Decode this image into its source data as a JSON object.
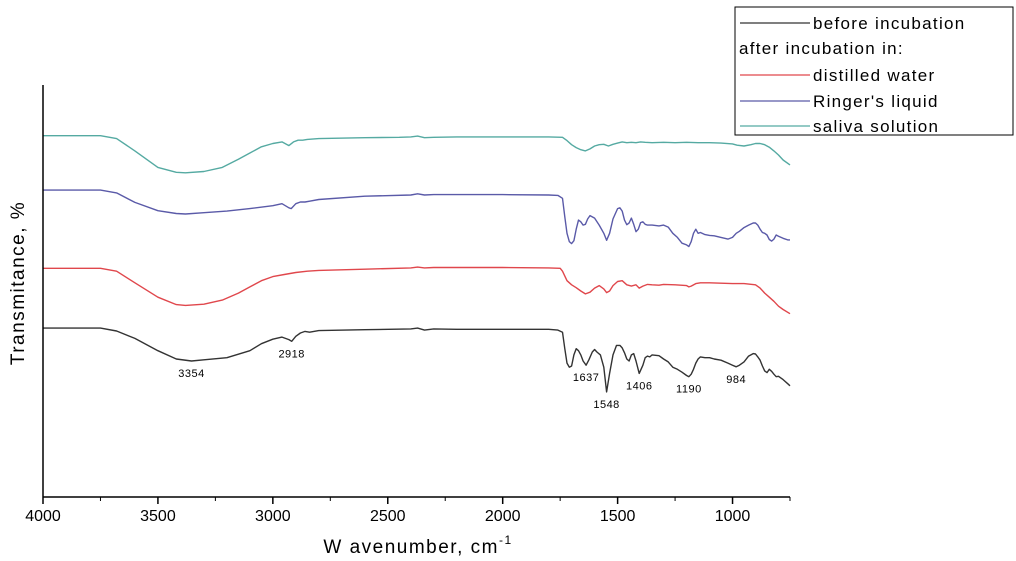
{
  "chart_data": {
    "type": "line",
    "xlabel": "W avenumber, cm",
    "xlabel_sup": "-1",
    "ylabel": "Transmitance, %",
    "xlim": [
      4000,
      750
    ],
    "x_reversed": true,
    "x_ticks": [
      4000,
      3500,
      3000,
      2500,
      2000,
      1500,
      1000
    ],
    "y_ticks_shown": false,
    "grid": false,
    "legend": {
      "placement": "top-right",
      "heading": "after incubation in:",
      "entries": [
        {
          "label": "before incubation",
          "color": "#333333"
        },
        {
          "label": "distilled water",
          "color": "#e0474c"
        },
        {
          "label": "Ringer's liquid",
          "color": "#5a5aa8"
        },
        {
          "label": "saliva solution",
          "color": "#55aaa2"
        }
      ]
    },
    "annotations": [
      {
        "text": "3354",
        "x": 3354
      },
      {
        "text": "2918",
        "x": 2918
      },
      {
        "text": "1637",
        "x": 1637
      },
      {
        "text": "1548",
        "x": 1548
      },
      {
        "text": "1406",
        "x": 1406
      },
      {
        "text": "1190",
        "x": 1190
      },
      {
        "text": "984",
        "x": 984
      }
    ],
    "series": [
      {
        "name": "saliva solution",
        "color": "#55aaa2",
        "x": [
          4000,
          3750,
          3680,
          3600,
          3500,
          3420,
          3380,
          3300,
          3220,
          3150,
          3100,
          3050,
          3000,
          2960,
          2930,
          2910,
          2890,
          2870,
          2850,
          2800,
          2600,
          2450,
          2400,
          2370,
          2340,
          2300,
          2200,
          2000,
          1800,
          1740,
          1720,
          1700,
          1680,
          1660,
          1640,
          1620,
          1600,
          1580,
          1560,
          1540,
          1520,
          1500,
          1480,
          1460,
          1440,
          1420,
          1400,
          1380,
          1350,
          1300,
          1250,
          1200,
          1150,
          1100,
          1050,
          1000,
          980,
          950,
          920,
          900,
          880,
          860,
          840,
          820,
          800,
          780,
          750
        ],
        "y": [
          0.877,
          0.877,
          0.87,
          0.84,
          0.8,
          0.788,
          0.787,
          0.79,
          0.8,
          0.82,
          0.835,
          0.85,
          0.858,
          0.862,
          0.853,
          0.862,
          0.866,
          0.866,
          0.868,
          0.87,
          0.872,
          0.873,
          0.874,
          0.876,
          0.872,
          0.873,
          0.874,
          0.874,
          0.874,
          0.873,
          0.865,
          0.855,
          0.848,
          0.843,
          0.84,
          0.845,
          0.852,
          0.855,
          0.856,
          0.852,
          0.856,
          0.859,
          0.862,
          0.86,
          0.861,
          0.86,
          0.862,
          0.861,
          0.86,
          0.861,
          0.86,
          0.861,
          0.86,
          0.86,
          0.859,
          0.857,
          0.854,
          0.852,
          0.855,
          0.858,
          0.858,
          0.855,
          0.849,
          0.84,
          0.83,
          0.818,
          0.806
        ]
      },
      {
        "name": "Ringer's liquid",
        "color": "#5a5aa8",
        "x": [
          4000,
          3750,
          3680,
          3600,
          3500,
          3420,
          3380,
          3300,
          3200,
          3100,
          3000,
          2960,
          2930,
          2920,
          2900,
          2880,
          2860,
          2840,
          2800,
          2600,
          2400,
          2370,
          2340,
          2300,
          2200,
          2000,
          1800,
          1760,
          1740,
          1730,
          1720,
          1710,
          1700,
          1690,
          1680,
          1670,
          1660,
          1650,
          1640,
          1630,
          1620,
          1600,
          1580,
          1560,
          1548,
          1535,
          1520,
          1500,
          1490,
          1480,
          1470,
          1460,
          1450,
          1440,
          1430,
          1420,
          1410,
          1400,
          1390,
          1380,
          1370,
          1350,
          1320,
          1300,
          1280,
          1260,
          1240,
          1220,
          1200,
          1190,
          1180,
          1170,
          1160,
          1150,
          1140,
          1120,
          1100,
          1080,
          1050,
          1020,
          1000,
          984,
          970,
          950,
          930,
          910,
          900,
          890,
          880,
          870,
          860,
          850,
          840,
          830,
          820,
          810,
          800,
          780,
          760,
          750
        ],
        "y": [
          0.745,
          0.745,
          0.738,
          0.715,
          0.695,
          0.688,
          0.687,
          0.69,
          0.694,
          0.7,
          0.707,
          0.712,
          0.702,
          0.7,
          0.712,
          0.716,
          0.716,
          0.718,
          0.722,
          0.73,
          0.733,
          0.736,
          0.733,
          0.734,
          0.734,
          0.734,
          0.733,
          0.732,
          0.725,
          0.68,
          0.64,
          0.62,
          0.615,
          0.622,
          0.65,
          0.672,
          0.668,
          0.66,
          0.662,
          0.675,
          0.683,
          0.677,
          0.66,
          0.64,
          0.623,
          0.64,
          0.675,
          0.7,
          0.702,
          0.694,
          0.672,
          0.661,
          0.665,
          0.677,
          0.662,
          0.644,
          0.65,
          0.666,
          0.668,
          0.662,
          0.66,
          0.66,
          0.658,
          0.66,
          0.655,
          0.64,
          0.63,
          0.616,
          0.612,
          0.608,
          0.62,
          0.64,
          0.65,
          0.64,
          0.642,
          0.637,
          0.635,
          0.634,
          0.63,
          0.626,
          0.63,
          0.64,
          0.645,
          0.654,
          0.66,
          0.665,
          0.665,
          0.66,
          0.65,
          0.642,
          0.64,
          0.636,
          0.625,
          0.621,
          0.626,
          0.636,
          0.633,
          0.628,
          0.624,
          0.624
        ]
      },
      {
        "name": "distilled water",
        "color": "#e0474c",
        "x": [
          4000,
          3750,
          3680,
          3600,
          3500,
          3420,
          3380,
          3300,
          3220,
          3150,
          3100,
          3050,
          3000,
          2950,
          2900,
          2850,
          2800,
          2600,
          2400,
          2370,
          2340,
          2300,
          2200,
          2000,
          1800,
          1750,
          1740,
          1720,
          1700,
          1680,
          1660,
          1640,
          1620,
          1600,
          1580,
          1560,
          1548,
          1535,
          1520,
          1500,
          1480,
          1460,
          1440,
          1420,
          1406,
          1390,
          1370,
          1350,
          1320,
          1300,
          1250,
          1200,
          1190,
          1180,
          1160,
          1140,
          1100,
          1050,
          1000,
          950,
          900,
          880,
          860,
          840,
          820,
          800,
          780,
          750
        ],
        "y": [
          0.555,
          0.555,
          0.548,
          0.52,
          0.485,
          0.467,
          0.465,
          0.468,
          0.478,
          0.495,
          0.51,
          0.525,
          0.535,
          0.54,
          0.545,
          0.548,
          0.55,
          0.553,
          0.556,
          0.558,
          0.556,
          0.557,
          0.557,
          0.557,
          0.556,
          0.555,
          0.548,
          0.525,
          0.515,
          0.508,
          0.5,
          0.493,
          0.497,
          0.507,
          0.513,
          0.505,
          0.496,
          0.5,
          0.513,
          0.523,
          0.525,
          0.515,
          0.512,
          0.515,
          0.507,
          0.512,
          0.516,
          0.515,
          0.514,
          0.516,
          0.515,
          0.513,
          0.51,
          0.512,
          0.518,
          0.52,
          0.52,
          0.519,
          0.518,
          0.518,
          0.515,
          0.507,
          0.495,
          0.485,
          0.475,
          0.463,
          0.455,
          0.445
        ]
      },
      {
        "name": "before incubation",
        "color": "#333333",
        "x": [
          4000,
          3750,
          3680,
          3600,
          3500,
          3420,
          3354,
          3300,
          3200,
          3100,
          3050,
          3000,
          2960,
          2930,
          2918,
          2900,
          2880,
          2860,
          2840,
          2800,
          2600,
          2400,
          2370,
          2340,
          2300,
          2200,
          2000,
          1800,
          1760,
          1740,
          1730,
          1720,
          1710,
          1700,
          1690,
          1680,
          1670,
          1660,
          1650,
          1637,
          1625,
          1610,
          1600,
          1590,
          1575,
          1560,
          1548,
          1535,
          1520,
          1505,
          1490,
          1480,
          1470,
          1460,
          1450,
          1440,
          1430,
          1420,
          1406,
          1390,
          1380,
          1370,
          1360,
          1350,
          1320,
          1300,
          1280,
          1260,
          1240,
          1220,
          1200,
          1190,
          1180,
          1170,
          1160,
          1150,
          1140,
          1120,
          1100,
          1080,
          1050,
          1020,
          1000,
          984,
          970,
          950,
          930,
          910,
          900,
          890,
          880,
          870,
          860,
          850,
          840,
          830,
          820,
          810,
          800,
          780,
          760,
          750
        ],
        "y": [
          0.41,
          0.41,
          0.403,
          0.385,
          0.355,
          0.335,
          0.33,
          0.333,
          0.338,
          0.355,
          0.372,
          0.383,
          0.388,
          0.382,
          0.378,
          0.39,
          0.398,
          0.402,
          0.4,
          0.404,
          0.406,
          0.408,
          0.41,
          0.405,
          0.408,
          0.407,
          0.407,
          0.407,
          0.405,
          0.4,
          0.36,
          0.325,
          0.315,
          0.318,
          0.345,
          0.36,
          0.355,
          0.345,
          0.33,
          0.32,
          0.333,
          0.352,
          0.358,
          0.352,
          0.345,
          0.315,
          0.255,
          0.3,
          0.345,
          0.368,
          0.368,
          0.362,
          0.35,
          0.335,
          0.33,
          0.345,
          0.348,
          0.33,
          0.3,
          0.32,
          0.338,
          0.342,
          0.34,
          0.345,
          0.343,
          0.335,
          0.328,
          0.315,
          0.31,
          0.303,
          0.295,
          0.292,
          0.298,
          0.31,
          0.325,
          0.335,
          0.34,
          0.338,
          0.338,
          0.335,
          0.332,
          0.325,
          0.32,
          0.316,
          0.32,
          0.328,
          0.342,
          0.348,
          0.347,
          0.34,
          0.332,
          0.318,
          0.306,
          0.302,
          0.31,
          0.305,
          0.298,
          0.292,
          0.293,
          0.285,
          0.275,
          0.27
        ]
      }
    ]
  }
}
